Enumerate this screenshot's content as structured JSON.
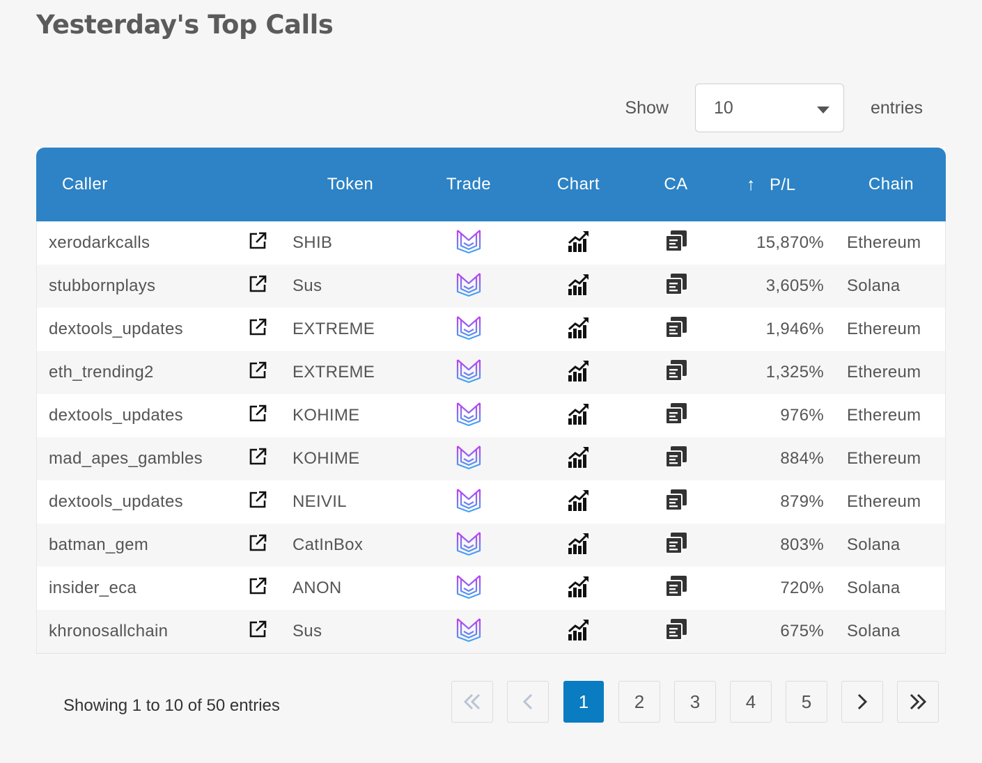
{
  "page": {
    "title": "Yesterday's Top Calls"
  },
  "length_menu": {
    "show_label": "Show",
    "selected": "10",
    "entries_label": "entries"
  },
  "table": {
    "columns": {
      "caller": "Caller",
      "token": "Token",
      "trade": "Trade",
      "chart": "Chart",
      "ca": "CA",
      "pl": "P/L",
      "chain": "Chain"
    },
    "sort_indicator": "↑",
    "rows": [
      {
        "caller": "xerodarkcalls",
        "token": "SHIB",
        "pl": "15,870%",
        "chain": "Ethereum"
      },
      {
        "caller": "stubbornplays",
        "token": "Sus",
        "pl": "3,605%",
        "chain": "Solana"
      },
      {
        "caller": "dextools_updates",
        "token": "EXTREME",
        "pl": "1,946%",
        "chain": "Ethereum"
      },
      {
        "caller": "eth_trending2",
        "token": "EXTREME",
        "pl": "1,325%",
        "chain": "Ethereum"
      },
      {
        "caller": "dextools_updates",
        "token": "KOHIME",
        "pl": "976%",
        "chain": "Ethereum"
      },
      {
        "caller": "mad_apes_gambles",
        "token": "KOHIME",
        "pl": "884%",
        "chain": "Ethereum"
      },
      {
        "caller": "dextools_updates",
        "token": "NEIVIL",
        "pl": "879%",
        "chain": "Ethereum"
      },
      {
        "caller": "batman_gem",
        "token": "CatInBox",
        "pl": "803%",
        "chain": "Solana"
      },
      {
        "caller": "insider_eca",
        "token": "ANON",
        "pl": "720%",
        "chain": "Solana"
      },
      {
        "caller": "khronosallchain",
        "token": "Sus",
        "pl": "675%",
        "chain": "Solana"
      }
    ]
  },
  "footer": {
    "info": "Showing 1 to 10 of 50 entries",
    "pages": [
      "1",
      "2",
      "3",
      "4",
      "5"
    ],
    "current_page": "1"
  },
  "icons": {
    "external_link": "external-link-icon",
    "trade": "trade-logo-icon",
    "chart": "chart-growth-icon",
    "ca": "copy-document-icon"
  },
  "colors": {
    "header_bg": "#2d83c5",
    "active_page": "#0a7cc1",
    "trade_logo_top": "#c33cf0",
    "trade_logo_bottom": "#3ea7f5"
  }
}
